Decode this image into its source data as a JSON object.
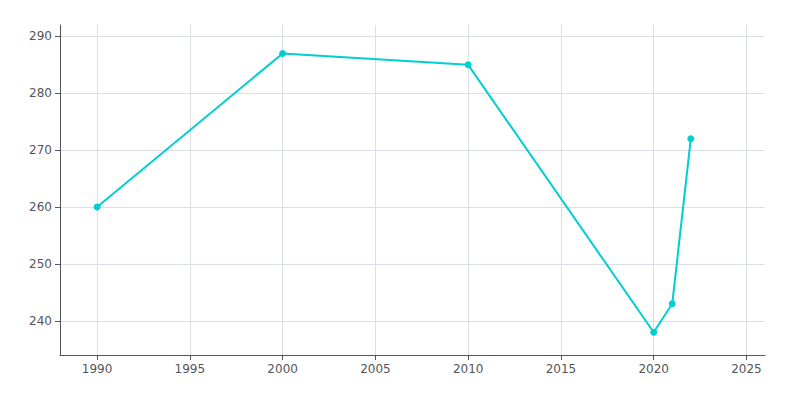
{
  "chart_data": {
    "type": "line",
    "x": [
      1990,
      2000,
      2010,
      2020,
      2021,
      2022
    ],
    "values": [
      260,
      287,
      285,
      238,
      243,
      272
    ],
    "color": "#00CED1",
    "marker": "circle",
    "xlim": [
      1988,
      2026
    ],
    "ylim": [
      234,
      292
    ],
    "xticks": [
      1990,
      1995,
      2000,
      2005,
      2010,
      2015,
      2020,
      2025
    ],
    "yticks": [
      240,
      250,
      260,
      270,
      280,
      290
    ],
    "grid": true
  }
}
